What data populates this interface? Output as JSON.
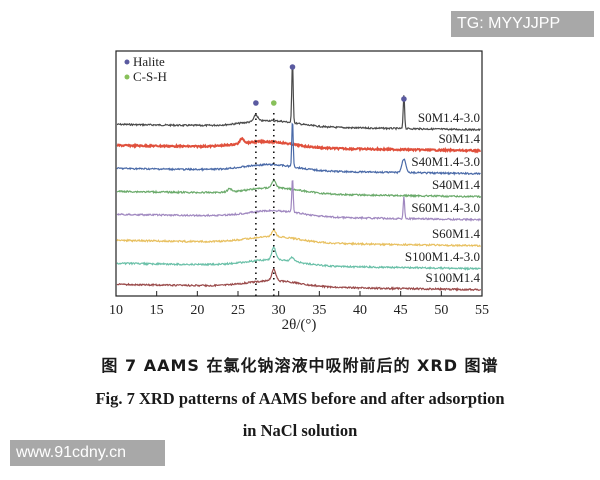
{
  "watermarks": {
    "top_right": "TG: MYYJJPP",
    "bottom_left": "www.91cdny.cn"
  },
  "caption": {
    "cn": "图 7   AAMS 在氯化钠溶液中吸附前后的 XRD 图谱",
    "en_line1": "Fig. 7    XRD patterns of AAMS before and after adsorption",
    "en_line2": "in NaCl solution"
  },
  "colors": {
    "halite_marker": "#5a5aa0",
    "csh_marker": "#88c05a",
    "S0M1.4-3.0": "#4a4a4a",
    "S0M1.4": "#e0503c",
    "S40M1.4-3.0": "#4a6aa8",
    "S40M1.4": "#6aaa6a",
    "S60M1.4-3.0": "#a088c0",
    "S60M1.4": "#e8c060",
    "S100M1.4-3.0": "#6ac0a8",
    "S100M1.4": "#9a4a4a"
  },
  "chart_data": {
    "type": "line",
    "title": "XRD patterns of AAMS before and after adsorption in NaCl solution",
    "xlabel": "2θ/(°)",
    "ylabel": "",
    "xlim": [
      10,
      55
    ],
    "xticks": [
      10,
      15,
      20,
      25,
      30,
      35,
      40,
      45,
      50,
      55
    ],
    "yticks": [],
    "grid": false,
    "legend": {
      "position": "upper-left",
      "entries": [
        {
          "marker": "circle",
          "color": "#5a5aa0",
          "label": "Halite"
        },
        {
          "marker": "circle",
          "color": "#88c05a",
          "label": "C-S-H"
        }
      ]
    },
    "reference_lines": [
      {
        "x": 27.2,
        "style": "dotted",
        "phase": "Halite"
      },
      {
        "x": 29.4,
        "style": "dotted",
        "phase": "C-S-H"
      }
    ],
    "annotations": [
      {
        "x": 27.2,
        "marker": "Halite",
        "note": "above dotted line"
      },
      {
        "x": 29.4,
        "marker": "C-S-H",
        "note": "above dotted line"
      },
      {
        "x": 31.7,
        "marker": "Halite",
        "note": "strong peak on S0M1.4-3.0"
      },
      {
        "x": 45.4,
        "marker": "Halite",
        "note": "peak on S0M1.4-3.0"
      }
    ],
    "series": [
      {
        "name": "S0M1.4-3.0",
        "offset_rank": 1,
        "broad_hump_center": 29,
        "peaks": [
          {
            "x": 27.2,
            "rel_height": 0.1
          },
          {
            "x": 31.7,
            "rel_height": 1.0
          },
          {
            "x": 45.4,
            "rel_height": 0.55
          }
        ]
      },
      {
        "name": "S0M1.4",
        "offset_rank": 2,
        "broad_hump_center": 28.5,
        "peaks": [
          {
            "x": 25.5,
            "rel_height": 0.08
          }
        ]
      },
      {
        "name": "S40M1.4-3.0",
        "offset_rank": 3,
        "broad_hump_center": 29,
        "peaks": [
          {
            "x": 31.7,
            "rel_height": 0.75
          },
          {
            "x": 45.4,
            "rel_height": 0.22
          }
        ]
      },
      {
        "name": "S40M1.4",
        "offset_rank": 4,
        "broad_hump_center": 29.5,
        "peaks": [
          {
            "x": 29.4,
            "rel_height": 0.12
          },
          {
            "x": 24,
            "rel_height": 0.05
          }
        ]
      },
      {
        "name": "S60M1.4-3.0",
        "offset_rank": 5,
        "broad_hump_center": 29.5,
        "peaks": [
          {
            "x": 31.7,
            "rel_height": 0.55
          },
          {
            "x": 45.4,
            "rel_height": 0.35
          }
        ]
      },
      {
        "name": "S60M1.4",
        "offset_rank": 6,
        "broad_hump_center": 29.4,
        "peaks": [
          {
            "x": 29.4,
            "rel_height": 0.1
          }
        ]
      },
      {
        "name": "S100M1.4-3.0",
        "offset_rank": 7,
        "broad_hump_center": 29.4,
        "peaks": [
          {
            "x": 29.4,
            "rel_height": 0.2
          },
          {
            "x": 31.7,
            "rel_height": 0.06
          }
        ]
      },
      {
        "name": "S100M1.4",
        "offset_rank": 8,
        "broad_hump_center": 29.4,
        "peaks": [
          {
            "x": 29.4,
            "rel_height": 0.18
          }
        ]
      }
    ]
  }
}
